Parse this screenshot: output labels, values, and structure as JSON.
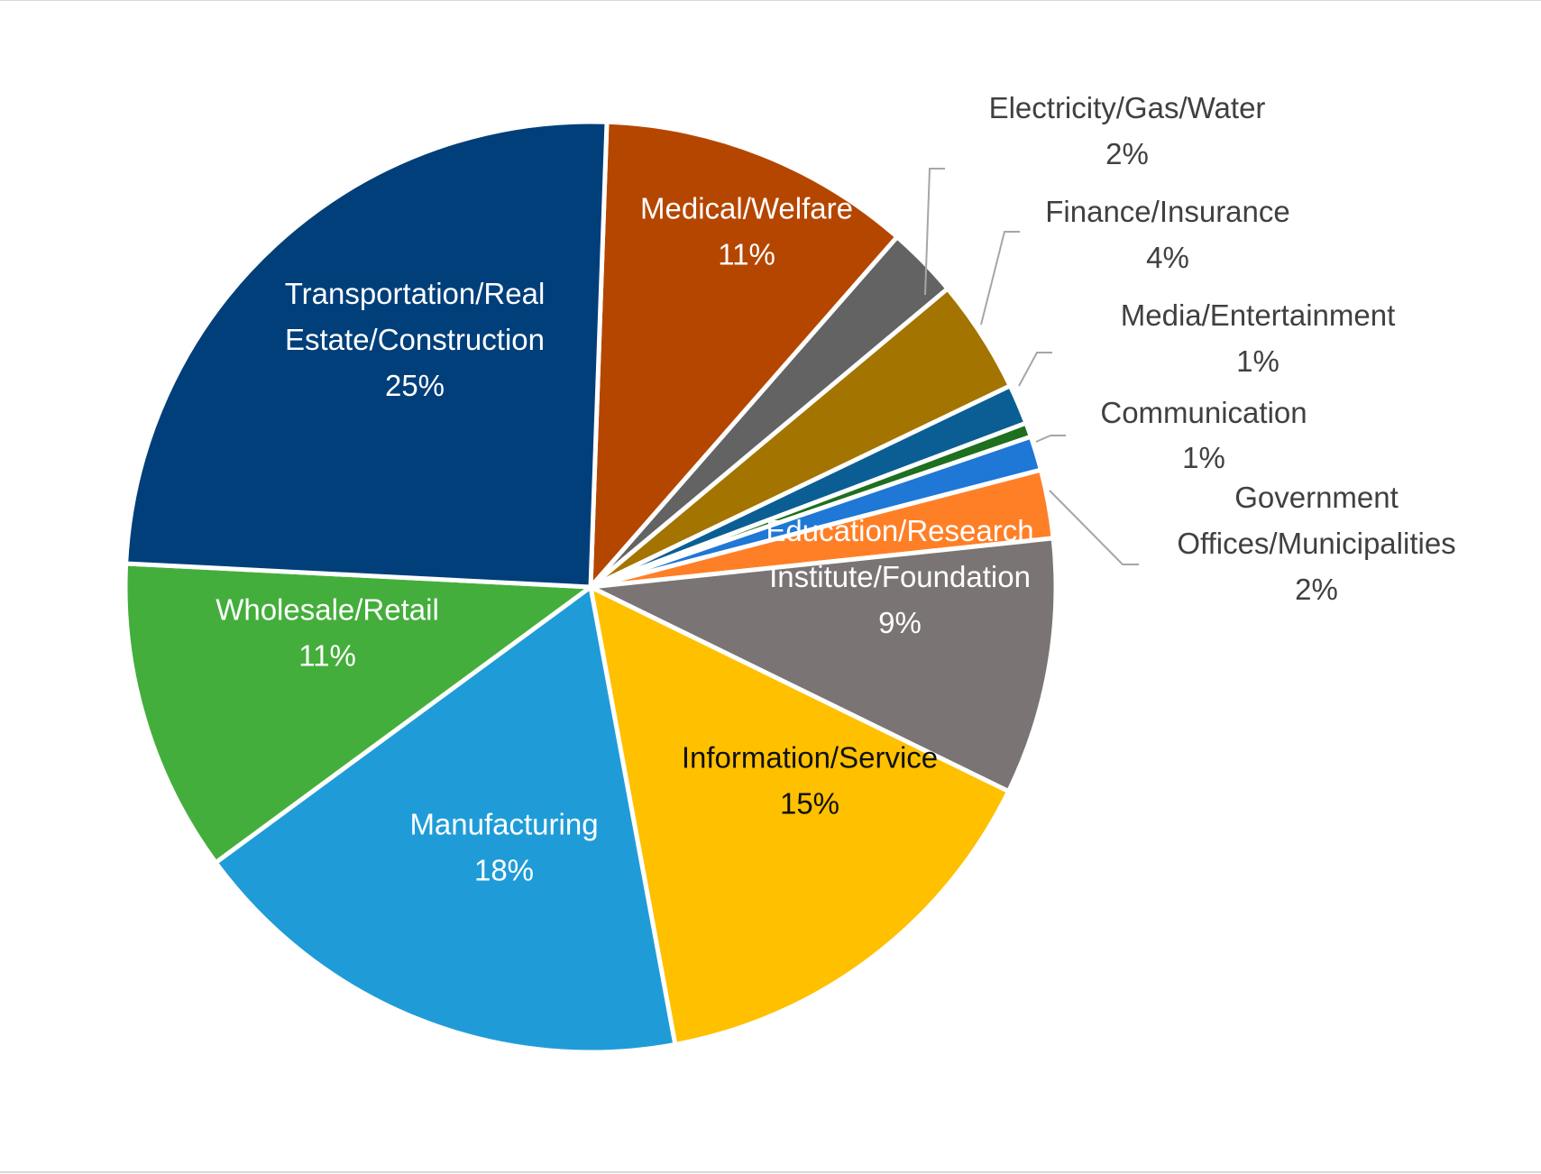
{
  "chart_data": {
    "type": "pie",
    "title": "",
    "series": [
      {
        "name": "",
        "slices": [
          {
            "label_lines": [
              "Medical/Welfare"
            ],
            "label": "Medical/Welfare",
            "value": 11,
            "value_text": "11%",
            "color": "#B54600"
          },
          {
            "label_lines": [
              "Electricity/Gas/Water"
            ],
            "label": "Electricity/Gas/Water",
            "value": 2.5,
            "value_text": "2%",
            "color": "#636363"
          },
          {
            "label_lines": [
              "Finance/Insurance"
            ],
            "label": "Finance/Insurance",
            "value": 4,
            "value_text": "4%",
            "color": "#A47400"
          },
          {
            "label_lines": [
              "Media/Entertainment"
            ],
            "label": "Media/Entertainment",
            "value": 1.4,
            "value_text": "1%",
            "color": "#0B5E94"
          },
          {
            "label_lines": [
              "Communication"
            ],
            "label": "Communication",
            "value": 0.5,
            "value_text": "",
            "color": "#1E6F1E"
          },
          {
            "label_lines": [
              ""
            ],
            "label": "",
            "value": 1.2,
            "value_text": "1%",
            "color": "#1F77D6"
          },
          {
            "label_lines": [
              "Government",
              "Offices/Municipalities"
            ],
            "label": "Government Offices/Municipalities",
            "value": 2.4,
            "value_text": "2%",
            "color": "#FF7F27"
          },
          {
            "label_lines": [
              "Education/Research",
              "Institute/Foundation"
            ],
            "label": "Education/Research Institute/Foundation",
            "value": 9,
            "value_text": "9%",
            "color": "#7A7574"
          },
          {
            "label_lines": [
              "Information/Service"
            ],
            "label": "Information/Service",
            "value": 15,
            "value_text": "15%",
            "color": "#FFC000"
          },
          {
            "label_lines": [
              "Manufacturing"
            ],
            "label": "Manufacturing",
            "value": 18,
            "value_text": "18%",
            "color": "#1F9CD8"
          },
          {
            "label_lines": [
              "Wholesale/Retail"
            ],
            "label": "Wholesale/Retail",
            "value": 11,
            "value_text": "11%",
            "color": "#44AE3C"
          },
          {
            "label_lines": [
              "Transportation/Real",
              "Estate/Construction"
            ],
            "label": "Transportation/Real Estate/Construction",
            "value": 25,
            "value_text": "25%",
            "color": "#003F7A"
          }
        ]
      }
    ],
    "legend": "none",
    "data_labels": "category and percentage"
  }
}
